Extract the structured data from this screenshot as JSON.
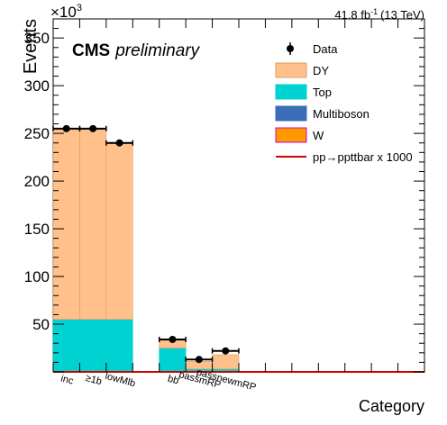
{
  "chart_data": {
    "type": "bar",
    "stacked": true,
    "header": {
      "exponent_base": "×10",
      "exponent_power": "3",
      "lumi_value": "41.8 fb",
      "lumi_unit_power": "-1",
      "lumi_energy": "(13 TeV)",
      "label_bold": "CMS",
      "label_italic": "preliminary"
    },
    "xlabel": "Category",
    "ylabel": "Events",
    "ylim": [
      0,
      370
    ],
    "y_unit_multiplier": 1000,
    "yticks": [
      50,
      100,
      150,
      200,
      250,
      300,
      350
    ],
    "categories": [
      "inc",
      "≥1b",
      "lowMlb",
      "",
      "bb",
      "passmRP",
      "passnewmRP",
      "",
      "",
      "",
      "",
      "",
      "",
      ""
    ],
    "series": [
      {
        "name": "Top",
        "color": "#00d2d2",
        "values": [
          55,
          55,
          55,
          0,
          25,
          3,
          3,
          0,
          0,
          0,
          0,
          0,
          0,
          0
        ]
      },
      {
        "name": "Multiboson",
        "color": "#3a6db5",
        "values": [
          0,
          0,
          0,
          0,
          0,
          0,
          0,
          0,
          0,
          0,
          0,
          0,
          0,
          0
        ]
      },
      {
        "name": "W",
        "color": "#ff9900",
        "values": [
          0,
          0,
          0,
          0,
          0,
          0,
          0,
          0,
          0,
          0,
          0,
          0,
          0,
          0
        ]
      },
      {
        "name": "DY",
        "color": "#ffc08c",
        "values": [
          199,
          199,
          184,
          0,
          8,
          8,
          15,
          0,
          0,
          0,
          0,
          0,
          0,
          0
        ]
      }
    ],
    "data_points": {
      "name": "Data",
      "values": [
        255,
        255,
        240,
        null,
        34,
        13,
        22,
        null,
        null,
        null,
        null,
        null,
        null,
        null
      ]
    },
    "signal": {
      "name": "pp→ppttbar x 1000",
      "color": "#cc0000",
      "values": [
        0,
        0,
        0,
        0,
        0,
        0,
        0,
        0,
        0,
        0,
        0,
        0,
        0,
        0
      ]
    },
    "legend": {
      "position": "top-right",
      "order": [
        "Data",
        "DY",
        "Top",
        "Multiboson",
        "W",
        "pp→ppttbar x 1000"
      ]
    },
    "grid": false
  }
}
